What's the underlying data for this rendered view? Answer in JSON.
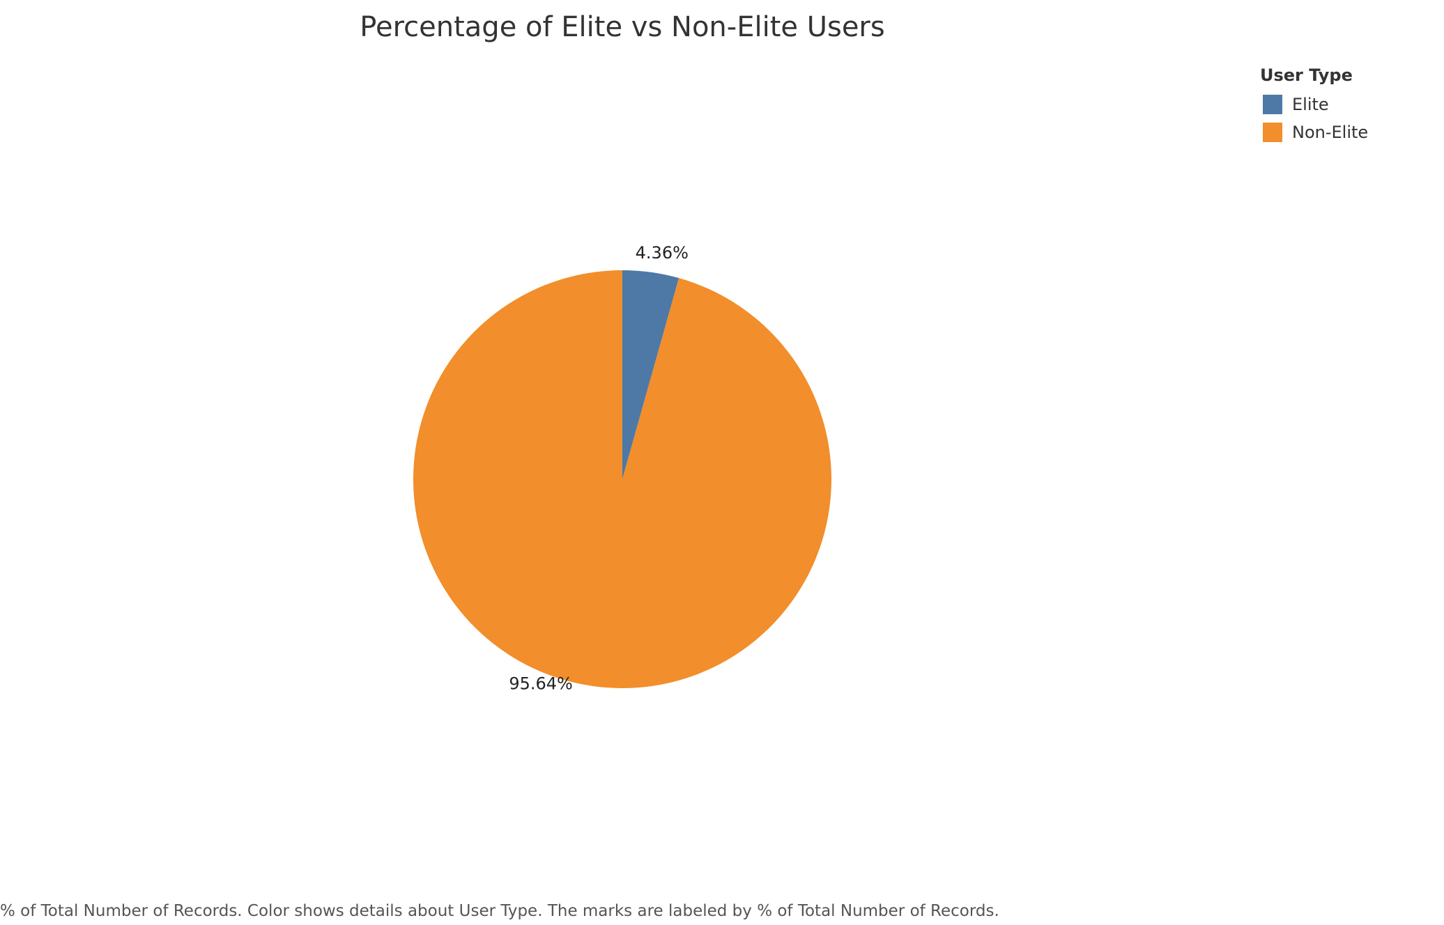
{
  "chart_data": {
    "type": "pie",
    "title": "Percentage of Elite vs Non-Elite Users",
    "legend": {
      "title": "User Type",
      "placement": "top-right"
    },
    "categories": [
      "Elite",
      "Non-Elite"
    ],
    "values": [
      4.36,
      95.64
    ],
    "labels": [
      "4.36%",
      "95.64%"
    ],
    "colors": [
      "#4e79a7",
      "#f28e2b"
    ]
  },
  "caption": "% of Total Number of Records.  Color shows details about User Type.  The marks are labeled by % of Total Number of Records."
}
